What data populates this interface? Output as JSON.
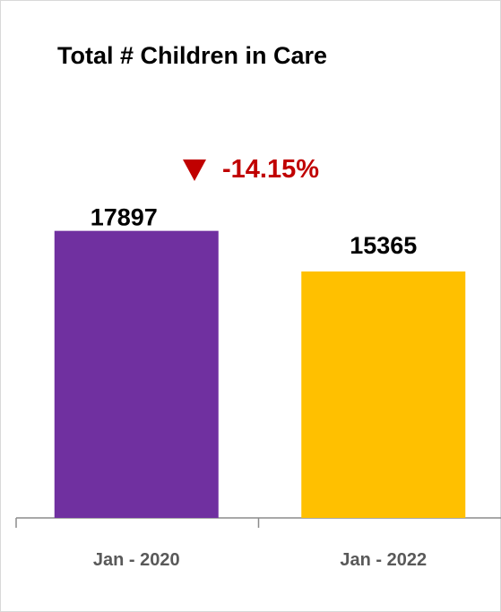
{
  "chart_data": {
    "type": "bar",
    "title": "Total # Children in Care",
    "categories": [
      "Jan - 2020",
      "Jan - 2022"
    ],
    "values": [
      17897,
      15365
    ],
    "colors": [
      "#7030a0",
      "#ffc000"
    ],
    "change_label": "-14.15%",
    "change_direction": "down",
    "change_color": "#c00000",
    "ylim": [
      0,
      20000
    ],
    "grid": false,
    "legend": "none"
  }
}
